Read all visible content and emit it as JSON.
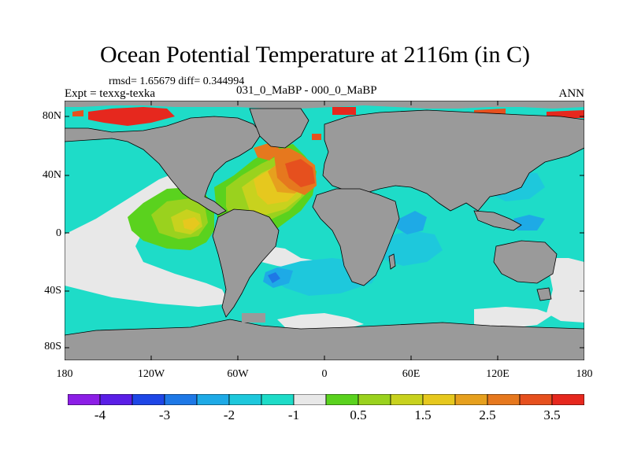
{
  "title": "Ocean Potential Temperature at 2116m (in C)",
  "stats_text": "rmsd= 1.65679 diff= 0.344994",
  "expt_text": "Expt = texxg-texka",
  "comparison_text": "031_0_MaBP - 000_0_MaBP",
  "season": "ANN",
  "axes": {
    "lat_ticks": [
      "80N",
      "40N",
      "0",
      "40S",
      "80S"
    ],
    "lon_ticks": [
      "180",
      "120W",
      "60W",
      "0",
      "60E",
      "120E",
      "180"
    ]
  },
  "colorbar": {
    "colors": [
      "#8c1ee6",
      "#5a1ee6",
      "#1e46e6",
      "#1e78e6",
      "#1eaae6",
      "#1ec8dc",
      "#1edcc8",
      "#e8e8e8",
      "#5ad21e",
      "#9ad21e",
      "#c8d21e",
      "#e6c81e",
      "#e6a01e",
      "#e6781e",
      "#e6501e",
      "#e6281e"
    ],
    "labels": [
      "-4",
      "-3",
      "-2",
      "-1",
      "0.5",
      "1.5",
      "2.5",
      "3.5"
    ]
  },
  "legend_colors": {
    "land": "#9a9a9a",
    "no_change": "#e8e8e8",
    "ocean_default": "#1edcc8"
  }
}
